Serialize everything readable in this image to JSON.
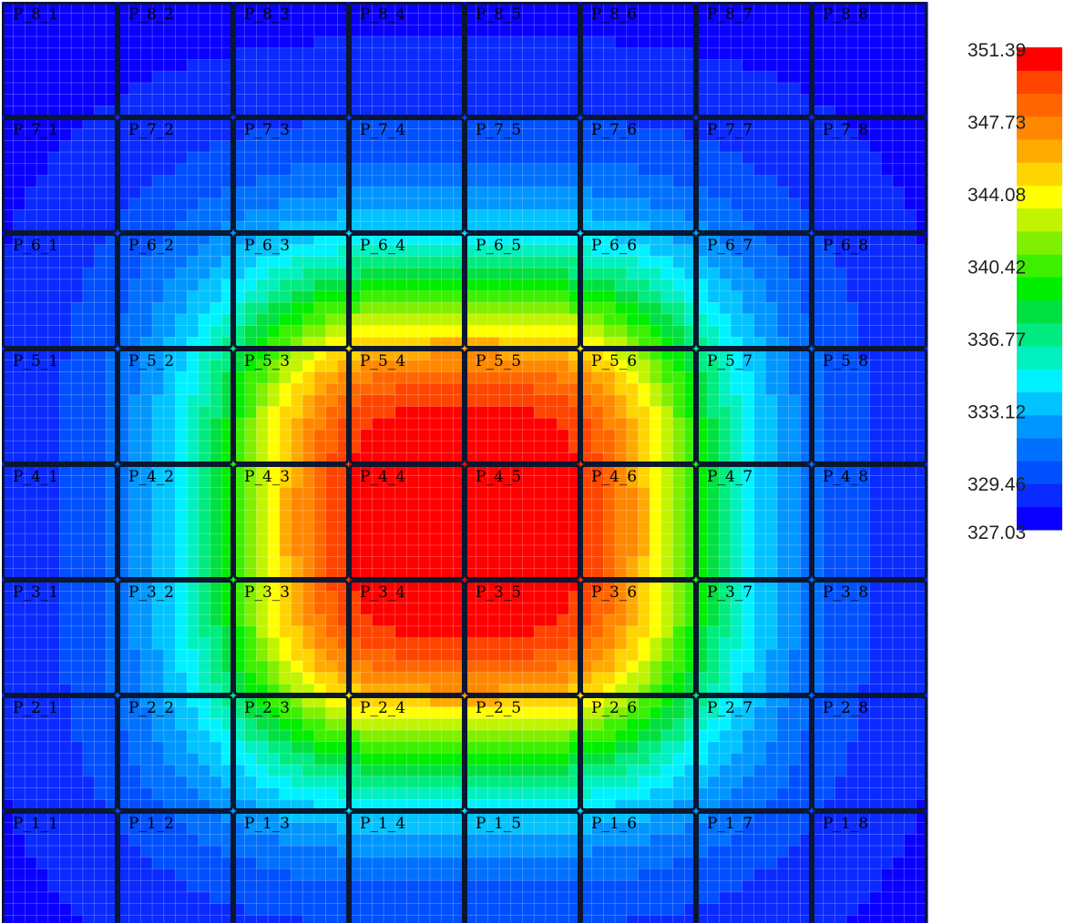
{
  "chart_data": {
    "type": "heatmap",
    "title": "",
    "xlabel": "",
    "ylabel": "",
    "grid": true,
    "legend_position": "right",
    "rows_top_to_bottom": [
      "8",
      "7",
      "6",
      "5",
      "4",
      "3",
      "2",
      "1"
    ],
    "cols_left_to_right": [
      "1",
      "2",
      "3",
      "4",
      "5",
      "6",
      "7",
      "8"
    ],
    "panel_labels": [
      [
        "P_8_1",
        "P_8_2",
        "P_8_3",
        "P_8_4",
        "P_8_5",
        "P_8_6",
        "P_8_7",
        "P_8_8"
      ],
      [
        "P_7_1",
        "P_7_2",
        "P_7_3",
        "P_7_4",
        "P_7_5",
        "P_7_6",
        "P_7_7",
        "P_7_8"
      ],
      [
        "P_6_1",
        "P_6_2",
        "P_6_3",
        "P_6_4",
        "P_6_5",
        "P_6_6",
        "P_6_7",
        "P_6_8"
      ],
      [
        "P_5_1",
        "P_5_2",
        "P_5_3",
        "P_5_4",
        "P_5_5",
        "P_5_6",
        "P_5_7",
        "P_5_8"
      ],
      [
        "P_4_1",
        "P_4_2",
        "P_4_3",
        "P_4_4",
        "P_4_5",
        "P_4_6",
        "P_4_7",
        "P_4_8"
      ],
      [
        "P_3_1",
        "P_3_2",
        "P_3_3",
        "P_3_4",
        "P_3_5",
        "P_3_6",
        "P_3_7",
        "P_3_8"
      ],
      [
        "P_2_1",
        "P_2_2",
        "P_2_3",
        "P_2_4",
        "P_2_5",
        "P_2_6",
        "P_2_7",
        "P_2_8"
      ],
      [
        "P_1_1",
        "P_1_2",
        "P_1_3",
        "P_1_4",
        "P_1_5",
        "P_1_6",
        "P_1_7",
        "P_1_8"
      ]
    ],
    "colorbar": {
      "min": 327.03,
      "max": 351.39,
      "tick_labels": [
        "351.39",
        "347.73",
        "344.08",
        "340.42",
        "336.77",
        "333.12",
        "329.46",
        "327.03"
      ],
      "tick_values": [
        351.39,
        347.73,
        344.08,
        340.42,
        336.77,
        333.12,
        329.46,
        327.03
      ],
      "colors_bottom_to_top": [
        "#0a00ff",
        "#0a2aff",
        "#0050ff",
        "#0070ff",
        "#0096ff",
        "#00c3ff",
        "#00f2ff",
        "#00f0c0",
        "#00eb80",
        "#00e040",
        "#00ee00",
        "#3cf000",
        "#80f000",
        "#c0f400",
        "#ffff00",
        "#ffd500",
        "#ffaa00",
        "#ff8800",
        "#ff6600",
        "#ff4400",
        "#ff0000"
      ]
    },
    "peak": {
      "x": 4.0,
      "y": 4.5,
      "value": 351.39
    }
  }
}
